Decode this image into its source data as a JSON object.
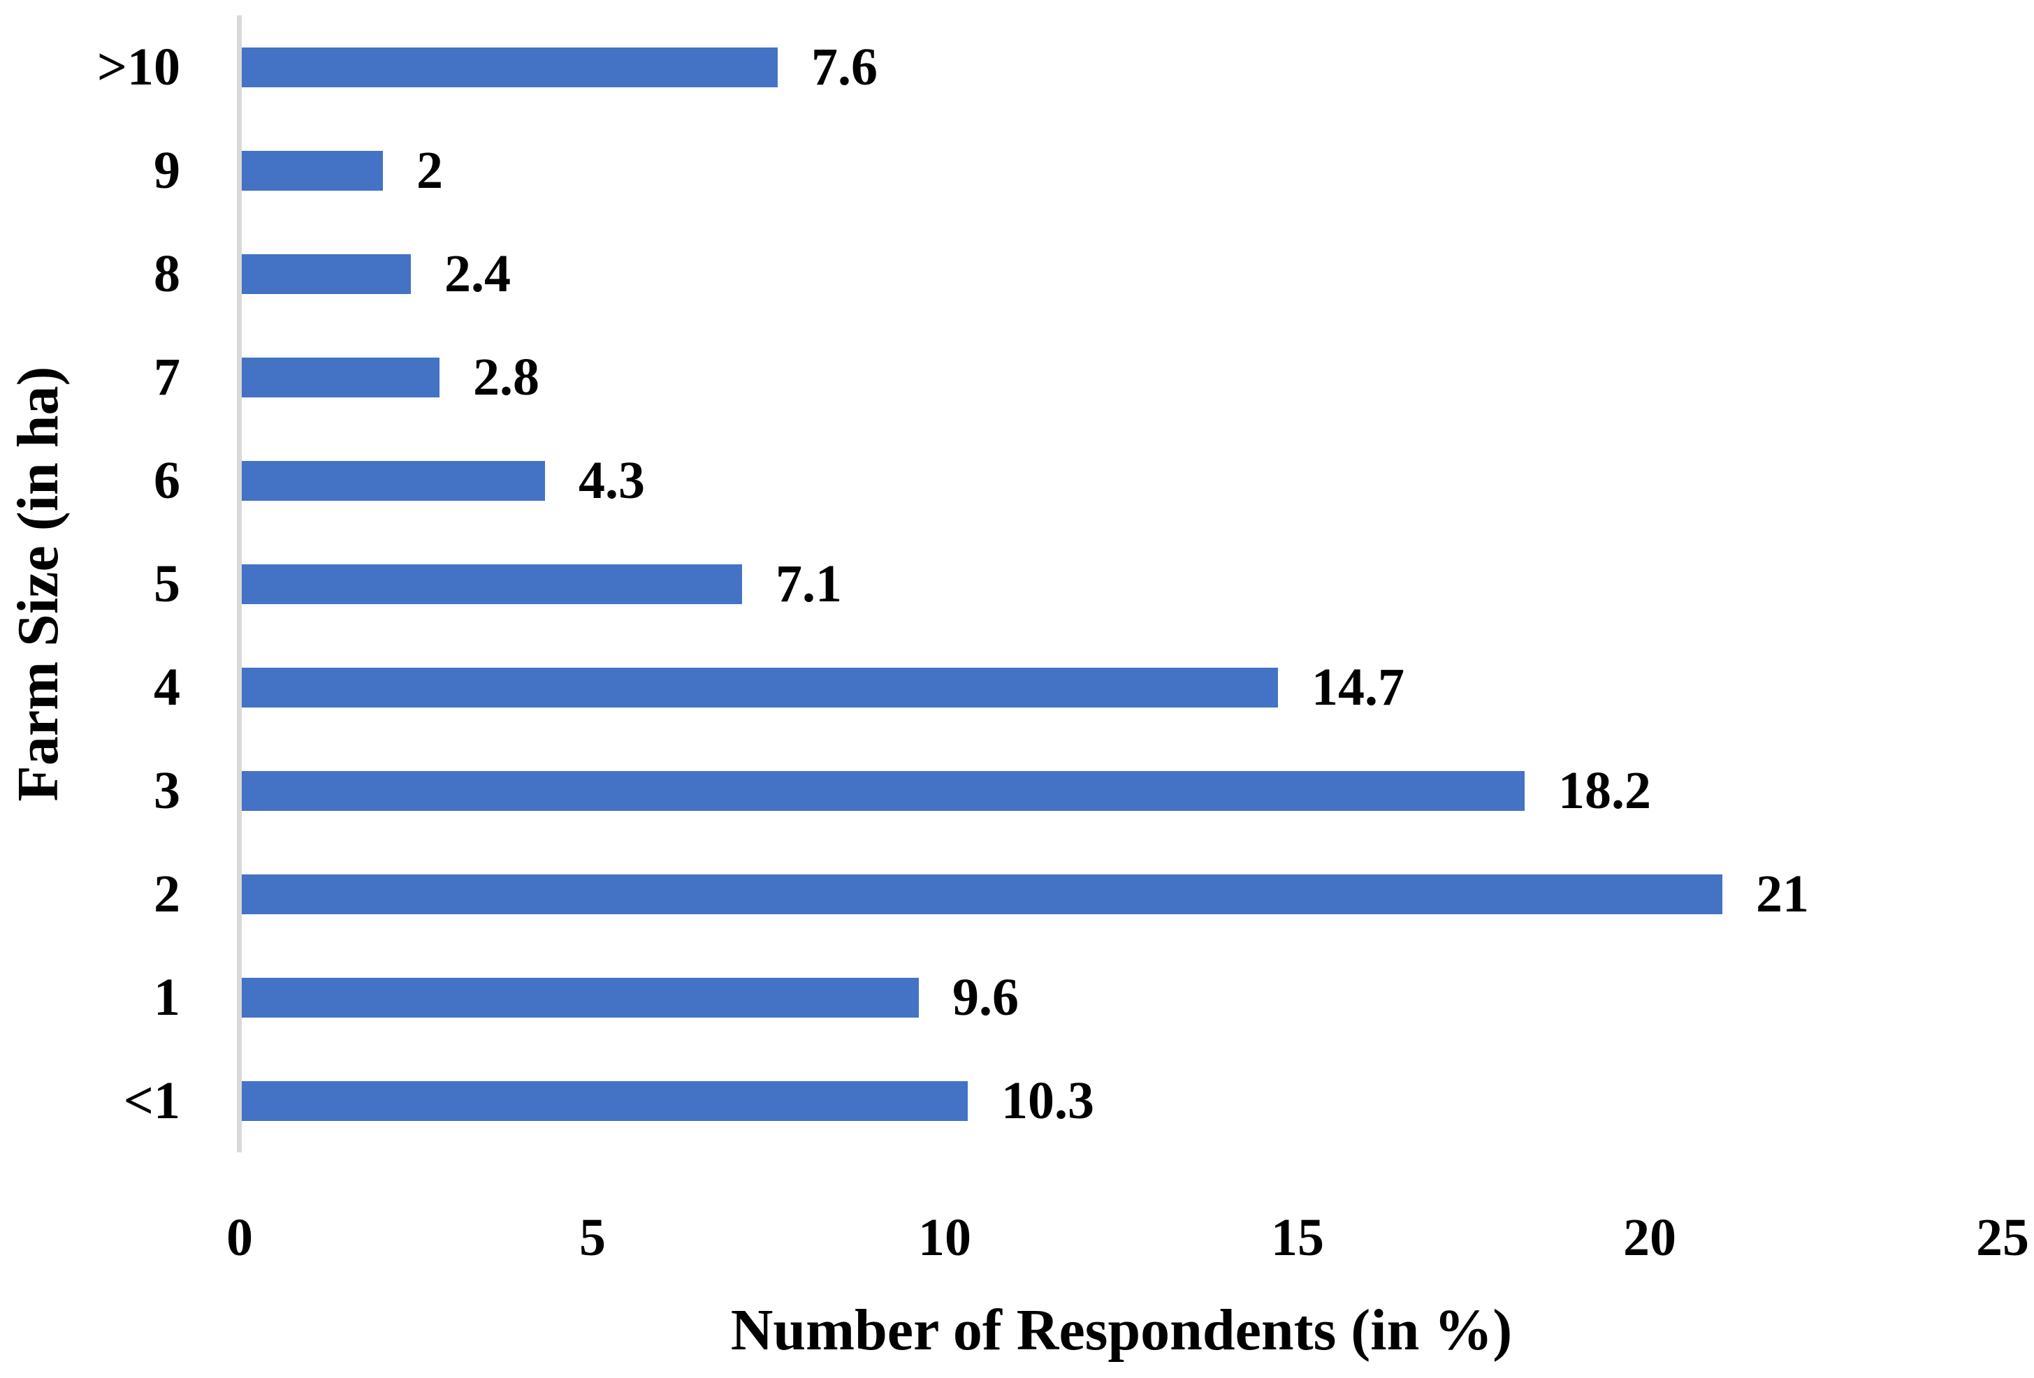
{
  "chart_data": {
    "type": "bar",
    "orientation": "horizontal",
    "title": "",
    "xlabel": "Number of Respondents (in %)",
    "ylabel": "Farm Size (in ha)",
    "categories": [
      ">10",
      "9",
      "8",
      "7",
      "6",
      "5",
      "4",
      "3",
      "2",
      "1",
      "<1"
    ],
    "values": [
      7.6,
      2,
      2.4,
      2.8,
      4.3,
      7.1,
      14.7,
      18.2,
      21,
      9.6,
      10.3
    ],
    "value_labels": [
      "7.6",
      "2",
      "2.4",
      "2.8",
      "4.3",
      "7.1",
      "14.7",
      "18.2",
      "21",
      "9.6",
      "10.3"
    ],
    "x_ticks": [
      "0",
      "5",
      "10",
      "15",
      "20",
      "25"
    ],
    "xlim": [
      0,
      25
    ],
    "grid": false,
    "legend": false,
    "data_labels": "outside-end",
    "colors": {
      "bar": "#4472C4",
      "axis_line": "#D9D9D9",
      "text": "#000000",
      "background": "#FFFFFF"
    }
  }
}
